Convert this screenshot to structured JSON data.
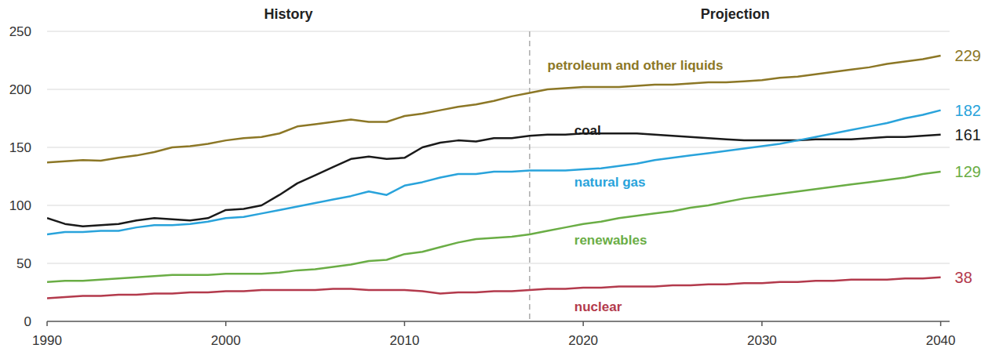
{
  "chart_data": {
    "type": "line",
    "x": [
      1990,
      1991,
      1992,
      1993,
      1994,
      1995,
      1996,
      1997,
      1998,
      1999,
      2000,
      2001,
      2002,
      2003,
      2004,
      2005,
      2006,
      2007,
      2008,
      2009,
      2010,
      2011,
      2012,
      2013,
      2014,
      2015,
      2016,
      2017,
      2018,
      2019,
      2020,
      2021,
      2022,
      2023,
      2024,
      2025,
      2026,
      2027,
      2028,
      2029,
      2030,
      2031,
      2032,
      2033,
      2034,
      2035,
      2036,
      2037,
      2038,
      2039,
      2040
    ],
    "series": [
      {
        "name": "petroleum and other liquids",
        "color": "#8c7726",
        "values": [
          137,
          138,
          139,
          138.5,
          141,
          143,
          146,
          150,
          151,
          153,
          156,
          158,
          159,
          162,
          168,
          170,
          172,
          174,
          172,
          172,
          177,
          179,
          182,
          185,
          187,
          190,
          194,
          197,
          200,
          201,
          202,
          202,
          202,
          203,
          204,
          204,
          205,
          206,
          206,
          207,
          208,
          210,
          211,
          213,
          215,
          217,
          219,
          222,
          224,
          226,
          229
        ]
      },
      {
        "name": "coal",
        "color": "#1a1a1a",
        "values": [
          89,
          84,
          82,
          83,
          84,
          87,
          89,
          88,
          87,
          89,
          96,
          97,
          100,
          109,
          119,
          126,
          133,
          140,
          142,
          140,
          141,
          150,
          154,
          156,
          155,
          158,
          158,
          160,
          161,
          161,
          162,
          162,
          162,
          162,
          161,
          160,
          159,
          158,
          157,
          156,
          156,
          156,
          156,
          157,
          157,
          157,
          158,
          159,
          159,
          160,
          161
        ]
      },
      {
        "name": "natural gas",
        "color": "#29a3db",
        "values": [
          75,
          77,
          77,
          78,
          78,
          81,
          83,
          83,
          84,
          86,
          89,
          90,
          93,
          96,
          99,
          102,
          105,
          108,
          112,
          109,
          117,
          120,
          124,
          127,
          127,
          129,
          129,
          130,
          130,
          130,
          131,
          132,
          134,
          136,
          139,
          141,
          143,
          145,
          147,
          149,
          151,
          153,
          156,
          159,
          162,
          165,
          168,
          171,
          175,
          178,
          182
        ]
      },
      {
        "name": "renewables",
        "color": "#6aad45",
        "values": [
          34,
          35,
          35,
          36,
          37,
          38,
          39,
          40,
          40,
          40,
          41,
          41,
          41,
          42,
          44,
          45,
          47,
          49,
          52,
          53,
          58,
          60,
          64,
          68,
          71,
          72,
          73,
          75,
          78,
          81,
          84,
          86,
          89,
          91,
          93,
          95,
          98,
          100,
          103,
          106,
          108,
          110,
          112,
          114,
          116,
          118,
          120,
          122,
          124,
          127,
          129
        ]
      },
      {
        "name": "nuclear",
        "color": "#b33a4c",
        "values": [
          20,
          21,
          22,
          22,
          23,
          23,
          24,
          24,
          25,
          25,
          26,
          26,
          27,
          27,
          27,
          27,
          28,
          28,
          27,
          27,
          27,
          26,
          24,
          25,
          25,
          26,
          26,
          27,
          28,
          28,
          29,
          29,
          30,
          30,
          30,
          31,
          31,
          32,
          32,
          33,
          33,
          34,
          34,
          35,
          35,
          36,
          36,
          36,
          37,
          37,
          38
        ]
      }
    ],
    "xlim": [
      1990,
      2040.5
    ],
    "xticks": [
      1990,
      2000,
      2010,
      2020,
      2030,
      2040
    ],
    "ylim": [
      0,
      250
    ],
    "yticks": [
      0,
      50,
      100,
      150,
      200,
      250
    ],
    "grid": true,
    "annotations": [
      {
        "text": "History",
        "x": 2003.5
      },
      {
        "text": "Projection",
        "x": 2028.5
      },
      {
        "type": "line",
        "x": 2017
      },
      {
        "text": "229",
        "x": 2040,
        "y": 229,
        "color": "#8c7726"
      },
      {
        "text": "182",
        "x": 2040,
        "y": 182,
        "color": "#29a3db"
      },
      {
        "text": "161",
        "x": 2040,
        "y": 161,
        "color": "#1a1a1a"
      },
      {
        "text": "129",
        "x": 2040,
        "y": 129,
        "color": "#6aad45"
      },
      {
        "text": "38",
        "x": 2040,
        "y": 38,
        "color": "#b33a4c"
      }
    ]
  }
}
